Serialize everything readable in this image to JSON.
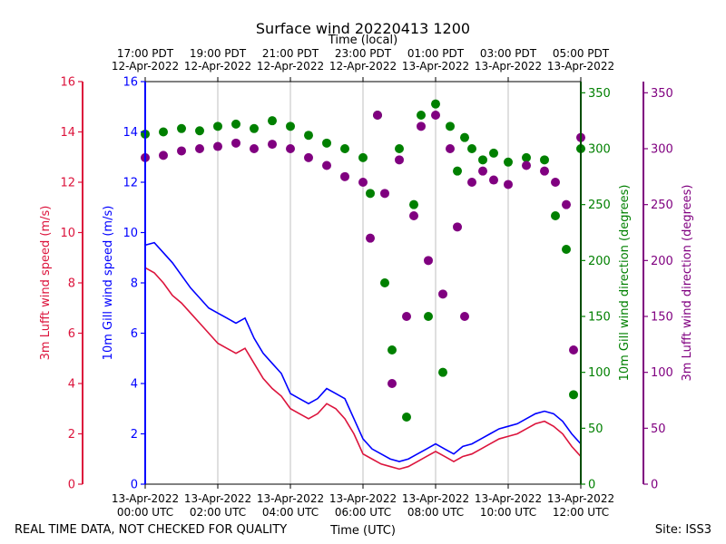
{
  "chart_data": {
    "type": "scatter",
    "title": "Surface wind 20220413 1200",
    "top_axis_label": "Time (local)",
    "xlabel": "Time (UTC)",
    "footer_left": "REAL TIME DATA, NOT CHECKED FOR QUALITY",
    "footer_right": "Site: ISS3",
    "x_range_hours": [
      0,
      12
    ],
    "bottom_ticks": [
      {
        "hour": 0,
        "line1": "13-Apr-2022",
        "line2": "00:00 UTC"
      },
      {
        "hour": 2,
        "line1": "13-Apr-2022",
        "line2": "02:00 UTC"
      },
      {
        "hour": 4,
        "line1": "13-Apr-2022",
        "line2": "04:00 UTC"
      },
      {
        "hour": 6,
        "line1": "13-Apr-2022",
        "line2": "06:00 UTC"
      },
      {
        "hour": 8,
        "line1": "13-Apr-2022",
        "line2": "08:00 UTC"
      },
      {
        "hour": 10,
        "line1": "13-Apr-2022",
        "line2": "10:00 UTC"
      },
      {
        "hour": 12,
        "line1": "13-Apr-2022",
        "line2": "12:00 UTC"
      }
    ],
    "top_ticks": [
      {
        "hour": 0,
        "line1": "17:00 PDT",
        "line2": "12-Apr-2022"
      },
      {
        "hour": 2,
        "line1": "19:00 PDT",
        "line2": "12-Apr-2022"
      },
      {
        "hour": 4,
        "line1": "21:00 PDT",
        "line2": "12-Apr-2022"
      },
      {
        "hour": 6,
        "line1": "23:00 PDT",
        "line2": "12-Apr-2022"
      },
      {
        "hour": 8,
        "line1": "01:00 PDT",
        "line2": "13-Apr-2022"
      },
      {
        "hour": 10,
        "line1": "03:00 PDT",
        "line2": "13-Apr-2022"
      },
      {
        "hour": 12,
        "line1": "05:00 PDT",
        "line2": "13-Apr-2022"
      }
    ],
    "axes": {
      "lufft_speed": {
        "label": "3m Lufft wind speed (m/s)",
        "range": [
          0,
          16
        ],
        "ticks": [
          0,
          2,
          4,
          6,
          8,
          10,
          12,
          14,
          16
        ],
        "color": "#dc143c"
      },
      "gill_speed": {
        "label": "10m Gill wind speed (m/s)",
        "range": [
          0,
          16
        ],
        "ticks": [
          0,
          2,
          4,
          6,
          8,
          10,
          12,
          14,
          16
        ],
        "color": "#0000ff"
      },
      "gill_dir": {
        "label": "10m Gill wind direction (degrees)",
        "range": [
          0,
          360
        ],
        "ticks": [
          0,
          50,
          100,
          150,
          200,
          250,
          300,
          350
        ],
        "color": "#008000"
      },
      "lufft_dir": {
        "label": "3m Lufft wind direction (degrees)",
        "range": [
          0,
          360
        ],
        "ticks": [
          0,
          50,
          100,
          150,
          200,
          250,
          300,
          350
        ],
        "color": "#800080"
      }
    },
    "series": [
      {
        "name": "10m Gill wind speed",
        "kind": "line",
        "color": "#0000ff",
        "x": [
          0,
          0.25,
          0.5,
          0.75,
          1,
          1.25,
          1.5,
          1.75,
          2,
          2.25,
          2.5,
          2.75,
          3,
          3.25,
          3.5,
          3.75,
          4,
          4.25,
          4.5,
          4.75,
          5,
          5.25,
          5.5,
          5.75,
          6,
          6.25,
          6.5,
          6.75,
          7,
          7.25,
          7.5,
          7.75,
          8,
          8.25,
          8.5,
          8.75,
          9,
          9.25,
          9.5,
          9.75,
          10,
          10.25,
          10.5,
          10.75,
          11,
          11.25,
          11.5,
          11.75,
          12
        ],
        "y": [
          9.5,
          9.6,
          9.2,
          8.8,
          8.3,
          7.8,
          7.4,
          7.0,
          6.8,
          6.6,
          6.4,
          6.6,
          5.8,
          5.2,
          4.8,
          4.4,
          3.6,
          3.4,
          3.2,
          3.4,
          3.8,
          3.6,
          3.4,
          2.6,
          1.8,
          1.4,
          1.2,
          1.0,
          0.9,
          1.0,
          1.2,
          1.4,
          1.6,
          1.4,
          1.2,
          1.5,
          1.6,
          1.8,
          2.0,
          2.2,
          2.3,
          2.4,
          2.6,
          2.8,
          2.9,
          2.8,
          2.5,
          2.0,
          1.6
        ]
      },
      {
        "name": "3m Lufft wind speed",
        "kind": "line",
        "color": "#dc143c",
        "x": [
          0,
          0.25,
          0.5,
          0.75,
          1,
          1.25,
          1.5,
          1.75,
          2,
          2.25,
          2.5,
          2.75,
          3,
          3.25,
          3.5,
          3.75,
          4,
          4.25,
          4.5,
          4.75,
          5,
          5.25,
          5.5,
          5.75,
          6,
          6.25,
          6.5,
          6.75,
          7,
          7.25,
          7.5,
          7.75,
          8,
          8.25,
          8.5,
          8.75,
          9,
          9.25,
          9.5,
          9.75,
          10,
          10.25,
          10.5,
          10.75,
          11,
          11.25,
          11.5,
          11.75,
          12
        ],
        "y": [
          8.6,
          8.4,
          8.0,
          7.5,
          7.2,
          6.8,
          6.4,
          6.0,
          5.6,
          5.4,
          5.2,
          5.4,
          4.8,
          4.2,
          3.8,
          3.5,
          3.0,
          2.8,
          2.6,
          2.8,
          3.2,
          3.0,
          2.6,
          2.0,
          1.2,
          1.0,
          0.8,
          0.7,
          0.6,
          0.7,
          0.9,
          1.1,
          1.3,
          1.1,
          0.9,
          1.1,
          1.2,
          1.4,
          1.6,
          1.8,
          1.9,
          2.0,
          2.2,
          2.4,
          2.5,
          2.3,
          2.0,
          1.5,
          1.1
        ]
      },
      {
        "name": "10m Gill wind direction",
        "kind": "scatter",
        "color": "#008000",
        "x": [
          0,
          0.5,
          1,
          1.5,
          2,
          2.5,
          3,
          3.5,
          4,
          4.5,
          5,
          5.5,
          6,
          6.2,
          6.4,
          6.6,
          6.8,
          7.0,
          7.2,
          7.4,
          7.6,
          7.8,
          8.0,
          8.2,
          8.4,
          8.6,
          8.8,
          9.0,
          9.3,
          9.6,
          10,
          10.5,
          11,
          11.3,
          11.6,
          11.8,
          12
        ],
        "y": [
          313,
          315,
          318,
          316,
          320,
          322,
          318,
          325,
          320,
          312,
          305,
          300,
          292,
          260,
          330,
          180,
          120,
          300,
          60,
          250,
          330,
          150,
          340,
          100,
          320,
          280,
          310,
          300,
          290,
          296,
          288,
          292,
          290,
          240,
          210,
          80,
          300
        ]
      },
      {
        "name": "3m Lufft wind direction",
        "kind": "scatter",
        "color": "#800080",
        "x": [
          0,
          0.5,
          1,
          1.5,
          2,
          2.5,
          3,
          3.5,
          4,
          4.5,
          5,
          5.5,
          6,
          6.2,
          6.4,
          6.6,
          6.8,
          7.0,
          7.2,
          7.4,
          7.6,
          7.8,
          8.0,
          8.2,
          8.4,
          8.6,
          8.8,
          9.0,
          9.3,
          9.6,
          10,
          10.5,
          11,
          11.3,
          11.6,
          11.8,
          12
        ],
        "y": [
          292,
          294,
          298,
          300,
          302,
          305,
          300,
          304,
          300,
          292,
          285,
          275,
          270,
          220,
          330,
          260,
          90,
          290,
          150,
          240,
          320,
          200,
          330,
          170,
          300,
          230,
          150,
          270,
          280,
          272,
          268,
          285,
          280,
          270,
          250,
          120,
          310
        ]
      }
    ]
  }
}
